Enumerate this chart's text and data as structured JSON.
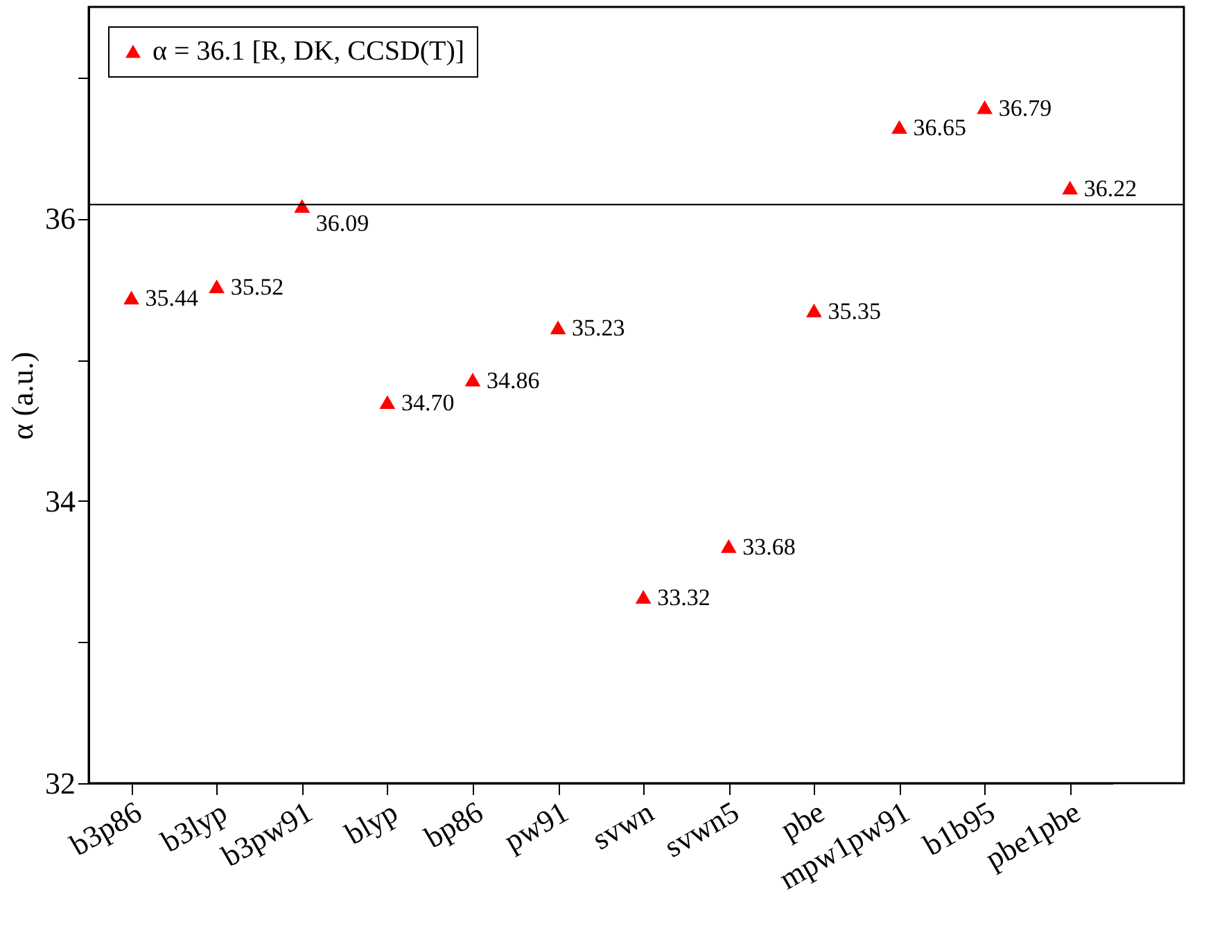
{
  "chart_data": {
    "type": "scatter",
    "ylabel": "α (a.u.)",
    "categories": [
      "b3p86",
      "b3lyp",
      "b3pw91",
      "blyp",
      "bp86",
      "pw91",
      "svwn",
      "svwn5",
      "pbe",
      "mpw1pw91",
      "b1b95",
      "pbe1pbe"
    ],
    "series": [
      {
        "name": "α = 36.1 [R, DK, CCSD(T)]",
        "color": "#ff0000",
        "values": [
          35.44,
          35.52,
          36.09,
          34.7,
          34.86,
          35.23,
          33.32,
          33.68,
          35.35,
          36.65,
          36.79,
          36.22
        ]
      }
    ],
    "value_labels": [
      "35.44",
      "35.52",
      "36.09",
      "34.70",
      "34.86",
      "35.23",
      "33.32",
      "33.68",
      "35.35",
      "36.65",
      "36.79",
      "36.22"
    ],
    "ylim": [
      32,
      37.5
    ],
    "yticks": [
      32,
      {
        "value": 33,
        "label": null
      },
      34,
      {
        "value": 35,
        "label": null
      },
      36,
      {
        "value": 37,
        "label": null
      }
    ],
    "ref_lines": [
      {
        "axis": "y",
        "value": 36.1,
        "color": "#000000"
      }
    ],
    "marker": "triangle",
    "legend": "top left",
    "grid": false
  }
}
